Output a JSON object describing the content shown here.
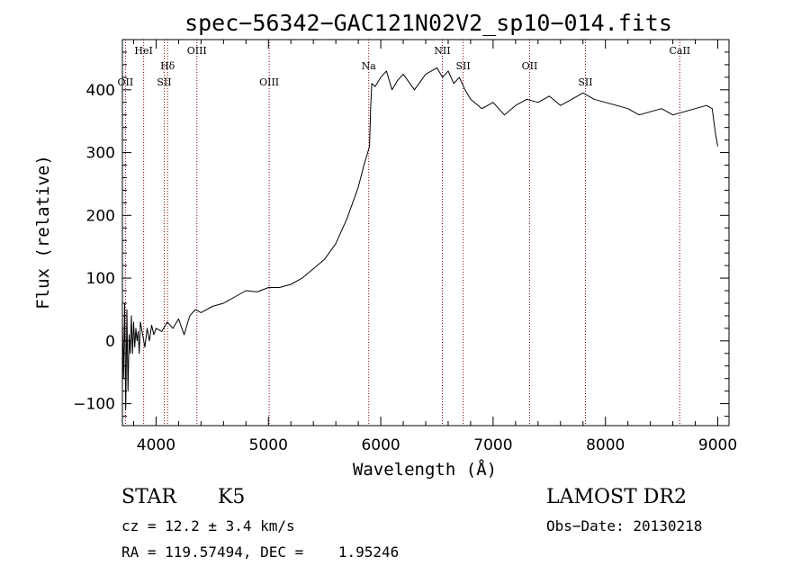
{
  "chart_data": {
    "type": "line",
    "title": "spec−56342−GAC121N02V2_sp10−014.fits",
    "xlabel": "Wavelength (Å)",
    "ylabel": "Flux (relative)",
    "xlim": [
      3700,
      9100
    ],
    "ylim": [
      -135,
      480
    ],
    "x_ticks": [
      4000,
      5000,
      6000,
      7000,
      8000,
      9000
    ],
    "y_ticks": [
      -100,
      0,
      100,
      200,
      300,
      400
    ],
    "grid": false,
    "legend": "none",
    "series": [
      {
        "values": [
          [
            3700,
            30
          ],
          [
            3710,
            -60
          ],
          [
            3720,
            60
          ],
          [
            3730,
            -110
          ],
          [
            3740,
            50
          ],
          [
            3750,
            -80
          ],
          [
            3760,
            10
          ],
          [
            3770,
            -20
          ],
          [
            3780,
            40
          ],
          [
            3790,
            -20
          ],
          [
            3800,
            30
          ],
          [
            3810,
            -10
          ],
          [
            3820,
            20
          ],
          [
            3830,
            0
          ],
          [
            3840,
            15
          ],
          [
            3850,
            -20
          ],
          [
            3860,
            30
          ],
          [
            3880,
            10
          ],
          [
            3900,
            -10
          ],
          [
            3920,
            20
          ],
          [
            3940,
            0
          ],
          [
            3960,
            25
          ],
          [
            3980,
            10
          ],
          [
            4000,
            20
          ],
          [
            4050,
            15
          ],
          [
            4100,
            30
          ],
          [
            4150,
            20
          ],
          [
            4200,
            35
          ],
          [
            4250,
            10
          ],
          [
            4300,
            40
          ],
          [
            4350,
            50
          ],
          [
            4400,
            45
          ],
          [
            4500,
            55
          ],
          [
            4600,
            60
          ],
          [
            4700,
            70
          ],
          [
            4800,
            80
          ],
          [
            4900,
            78
          ],
          [
            5000,
            85
          ],
          [
            5100,
            85
          ],
          [
            5200,
            90
          ],
          [
            5300,
            100
          ],
          [
            5400,
            115
          ],
          [
            5500,
            130
          ],
          [
            5600,
            155
          ],
          [
            5700,
            195
          ],
          [
            5800,
            245
          ],
          [
            5850,
            280
          ],
          [
            5900,
            310
          ],
          [
            5910,
            370
          ],
          [
            5920,
            410
          ],
          [
            5950,
            405
          ],
          [
            6000,
            420
          ],
          [
            6050,
            430
          ],
          [
            6100,
            400
          ],
          [
            6150,
            415
          ],
          [
            6200,
            425
          ],
          [
            6300,
            400
          ],
          [
            6400,
            425
          ],
          [
            6500,
            435
          ],
          [
            6550,
            420
          ],
          [
            6600,
            430
          ],
          [
            6650,
            410
          ],
          [
            6700,
            420
          ],
          [
            6750,
            400
          ],
          [
            6800,
            385
          ],
          [
            6900,
            370
          ],
          [
            7000,
            380
          ],
          [
            7100,
            360
          ],
          [
            7200,
            375
          ],
          [
            7300,
            385
          ],
          [
            7400,
            380
          ],
          [
            7500,
            390
          ],
          [
            7600,
            375
          ],
          [
            7700,
            385
          ],
          [
            7800,
            395
          ],
          [
            7900,
            385
          ],
          [
            8000,
            380
          ],
          [
            8100,
            375
          ],
          [
            8200,
            370
          ],
          [
            8300,
            360
          ],
          [
            8400,
            365
          ],
          [
            8500,
            370
          ],
          [
            8600,
            360
          ],
          [
            8700,
            365
          ],
          [
            8800,
            370
          ],
          [
            8900,
            375
          ],
          [
            8950,
            370
          ],
          [
            8980,
            330
          ],
          [
            9000,
            310
          ]
        ]
      }
    ],
    "lines": [
      {
        "name": "OII",
        "x": 3727,
        "level": 2
      },
      {
        "name": "HeI",
        "x": 3889,
        "level": 0
      },
      {
        "name": "SII",
        "x": 4072,
        "level": 2
      },
      {
        "name": "Hδ",
        "x": 4102,
        "level": 1
      },
      {
        "name": "OIII",
        "x": 4363,
        "level": 0
      },
      {
        "name": "OIII",
        "x": 5007,
        "level": 2
      },
      {
        "name": "Na",
        "x": 5893,
        "level": 1
      },
      {
        "name": "NII",
        "x": 6548,
        "level": 0
      },
      {
        "name": "SII",
        "x": 6733,
        "level": 1
      },
      {
        "name": "OII",
        "x": 7325,
        "level": 1
      },
      {
        "name": "SII",
        "x": 7822,
        "level": 2
      },
      {
        "name": "CaII",
        "x": 8662,
        "level": 0
      }
    ]
  },
  "info": {
    "class_label": "STAR",
    "subclass_label": "K5",
    "cz_text": "cz = 12.2 ± 3.4 km/s",
    "coords_text": "RA = 119.57494, DEC =    1.95246",
    "survey_label": "LAMOST DR2",
    "obs_date_text": "Obs−Date: 20130218"
  },
  "colors": {
    "spectrum": "#000000",
    "line_markers": "#8b0000",
    "axes": "#000000"
  }
}
